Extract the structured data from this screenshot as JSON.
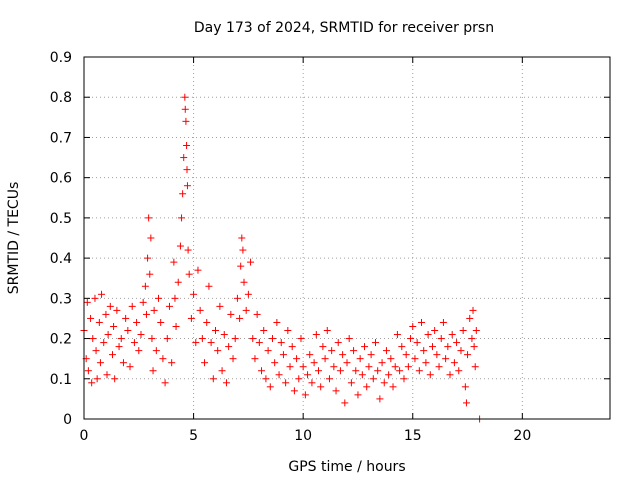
{
  "chart_data": {
    "type": "scatter",
    "title": "Day 173 of 2024, SRMTID for receiver prsn",
    "xlabel": "GPS time / hours",
    "ylabel": "SRMTID / TECUs",
    "xlim": [
      0,
      24
    ],
    "ylim": [
      0,
      0.9
    ],
    "xticks": [
      0,
      5,
      10,
      15,
      20
    ],
    "yticks": [
      0,
      0.1,
      0.2,
      0.3,
      0.4,
      0.5,
      0.6,
      0.7,
      0.8,
      0.9
    ],
    "ytick_labels": [
      "0",
      "0.1",
      "0.2",
      "0.3",
      "0.4",
      "0.5",
      "0.6",
      "0.7",
      "0.8",
      "0.9"
    ],
    "grid": true,
    "marker": "+",
    "color": "#ff0000",
    "series": [
      {
        "name": "SRMTID",
        "points": [
          [
            0.0,
            0.22
          ],
          [
            0.1,
            0.15
          ],
          [
            0.15,
            0.29
          ],
          [
            0.2,
            0.12
          ],
          [
            0.3,
            0.25
          ],
          [
            0.35,
            0.09
          ],
          [
            0.4,
            0.2
          ],
          [
            0.5,
            0.3
          ],
          [
            0.55,
            0.17
          ],
          [
            0.6,
            0.1
          ],
          [
            0.7,
            0.24
          ],
          [
            0.75,
            0.14
          ],
          [
            0.8,
            0.31
          ],
          [
            0.9,
            0.19
          ],
          [
            1.0,
            0.26
          ],
          [
            1.05,
            0.11
          ],
          [
            1.1,
            0.21
          ],
          [
            1.2,
            0.28
          ],
          [
            1.3,
            0.16
          ],
          [
            1.35,
            0.23
          ],
          [
            1.4,
            0.1
          ],
          [
            1.5,
            0.27
          ],
          [
            1.6,
            0.18
          ],
          [
            1.7,
            0.2
          ],
          [
            1.8,
            0.14
          ],
          [
            1.9,
            0.25
          ],
          [
            2.0,
            0.22
          ],
          [
            2.1,
            0.13
          ],
          [
            2.2,
            0.28
          ],
          [
            2.3,
            0.19
          ],
          [
            2.4,
            0.24
          ],
          [
            2.5,
            0.17
          ],
          [
            2.6,
            0.21
          ],
          [
            2.7,
            0.29
          ],
          [
            2.8,
            0.33
          ],
          [
            2.85,
            0.26
          ],
          [
            2.9,
            0.4
          ],
          [
            2.95,
            0.5
          ],
          [
            3.0,
            0.36
          ],
          [
            3.05,
            0.45
          ],
          [
            3.1,
            0.2
          ],
          [
            3.15,
            0.12
          ],
          [
            3.2,
            0.27
          ],
          [
            3.3,
            0.17
          ],
          [
            3.4,
            0.3
          ],
          [
            3.5,
            0.24
          ],
          [
            3.6,
            0.15
          ],
          [
            3.7,
            0.09
          ],
          [
            3.8,
            0.2
          ],
          [
            3.9,
            0.28
          ],
          [
            4.0,
            0.14
          ],
          [
            4.1,
            0.39
          ],
          [
            4.15,
            0.3
          ],
          [
            4.2,
            0.23
          ],
          [
            4.3,
            0.34
          ],
          [
            4.4,
            0.43
          ],
          [
            4.45,
            0.5
          ],
          [
            4.5,
            0.56
          ],
          [
            4.55,
            0.65
          ],
          [
            4.6,
            0.8
          ],
          [
            4.62,
            0.77
          ],
          [
            4.65,
            0.74
          ],
          [
            4.68,
            0.68
          ],
          [
            4.7,
            0.62
          ],
          [
            4.72,
            0.58
          ],
          [
            4.75,
            0.42
          ],
          [
            4.8,
            0.36
          ],
          [
            4.9,
            0.25
          ],
          [
            5.0,
            0.31
          ],
          [
            5.1,
            0.19
          ],
          [
            5.2,
            0.37
          ],
          [
            5.3,
            0.27
          ],
          [
            5.4,
            0.2
          ],
          [
            5.5,
            0.14
          ],
          [
            5.6,
            0.24
          ],
          [
            5.7,
            0.33
          ],
          [
            5.8,
            0.19
          ],
          [
            5.9,
            0.1
          ],
          [
            6.0,
            0.22
          ],
          [
            6.1,
            0.17
          ],
          [
            6.2,
            0.28
          ],
          [
            6.3,
            0.12
          ],
          [
            6.4,
            0.21
          ],
          [
            6.5,
            0.09
          ],
          [
            6.6,
            0.18
          ],
          [
            6.7,
            0.26
          ],
          [
            6.8,
            0.15
          ],
          [
            6.9,
            0.2
          ],
          [
            7.0,
            0.3
          ],
          [
            7.1,
            0.25
          ],
          [
            7.15,
            0.38
          ],
          [
            7.2,
            0.45
          ],
          [
            7.25,
            0.42
          ],
          [
            7.3,
            0.34
          ],
          [
            7.4,
            0.27
          ],
          [
            7.5,
            0.31
          ],
          [
            7.6,
            0.39
          ],
          [
            7.7,
            0.2
          ],
          [
            7.8,
            0.15
          ],
          [
            7.9,
            0.26
          ],
          [
            8.0,
            0.19
          ],
          [
            8.1,
            0.12
          ],
          [
            8.2,
            0.22
          ],
          [
            8.3,
            0.1
          ],
          [
            8.4,
            0.17
          ],
          [
            8.5,
            0.08
          ],
          [
            8.6,
            0.2
          ],
          [
            8.7,
            0.14
          ],
          [
            8.8,
            0.24
          ],
          [
            8.9,
            0.11
          ],
          [
            9.0,
            0.19
          ],
          [
            9.1,
            0.16
          ],
          [
            9.2,
            0.09
          ],
          [
            9.3,
            0.22
          ],
          [
            9.4,
            0.13
          ],
          [
            9.5,
            0.18
          ],
          [
            9.6,
            0.07
          ],
          [
            9.7,
            0.15
          ],
          [
            9.8,
            0.1
          ],
          [
            9.9,
            0.2
          ],
          [
            10.0,
            0.13
          ],
          [
            10.1,
            0.06
          ],
          [
            10.2,
            0.11
          ],
          [
            10.3,
            0.16
          ],
          [
            10.4,
            0.09
          ],
          [
            10.5,
            0.14
          ],
          [
            10.6,
            0.21
          ],
          [
            10.7,
            0.12
          ],
          [
            10.8,
            0.08
          ],
          [
            10.9,
            0.18
          ],
          [
            11.0,
            0.15
          ],
          [
            11.1,
            0.22
          ],
          [
            11.2,
            0.1
          ],
          [
            11.3,
            0.17
          ],
          [
            11.4,
            0.13
          ],
          [
            11.5,
            0.07
          ],
          [
            11.6,
            0.19
          ],
          [
            11.7,
            0.12
          ],
          [
            11.8,
            0.16
          ],
          [
            11.9,
            0.04
          ],
          [
            12.0,
            0.14
          ],
          [
            12.1,
            0.2
          ],
          [
            12.2,
            0.09
          ],
          [
            12.3,
            0.17
          ],
          [
            12.4,
            0.12
          ],
          [
            12.5,
            0.06
          ],
          [
            12.6,
            0.15
          ],
          [
            12.7,
            0.11
          ],
          [
            12.8,
            0.18
          ],
          [
            12.9,
            0.08
          ],
          [
            13.0,
            0.13
          ],
          [
            13.1,
            0.16
          ],
          [
            13.2,
            0.1
          ],
          [
            13.3,
            0.19
          ],
          [
            13.4,
            0.12
          ],
          [
            13.5,
            0.05
          ],
          [
            13.6,
            0.14
          ],
          [
            13.7,
            0.09
          ],
          [
            13.8,
            0.17
          ],
          [
            13.9,
            0.11
          ],
          [
            14.0,
            0.15
          ],
          [
            14.1,
            0.08
          ],
          [
            14.2,
            0.13
          ],
          [
            14.3,
            0.21
          ],
          [
            14.4,
            0.12
          ],
          [
            14.5,
            0.18
          ],
          [
            14.6,
            0.1
          ],
          [
            14.7,
            0.16
          ],
          [
            14.8,
            0.13
          ],
          [
            14.9,
            0.2
          ],
          [
            15.0,
            0.23
          ],
          [
            15.1,
            0.15
          ],
          [
            15.2,
            0.19
          ],
          [
            15.3,
            0.12
          ],
          [
            15.4,
            0.24
          ],
          [
            15.5,
            0.17
          ],
          [
            15.6,
            0.14
          ],
          [
            15.7,
            0.21
          ],
          [
            15.8,
            0.11
          ],
          [
            15.9,
            0.18
          ],
          [
            16.0,
            0.22
          ],
          [
            16.1,
            0.16
          ],
          [
            16.2,
            0.13
          ],
          [
            16.3,
            0.2
          ],
          [
            16.4,
            0.24
          ],
          [
            16.5,
            0.15
          ],
          [
            16.6,
            0.18
          ],
          [
            16.7,
            0.11
          ],
          [
            16.8,
            0.21
          ],
          [
            16.9,
            0.14
          ],
          [
            17.0,
            0.19
          ],
          [
            17.1,
            0.12
          ],
          [
            17.2,
            0.17
          ],
          [
            17.3,
            0.22
          ],
          [
            17.4,
            0.08
          ],
          [
            17.45,
            0.04
          ],
          [
            17.5,
            0.16
          ],
          [
            17.6,
            0.25
          ],
          [
            17.7,
            0.2
          ],
          [
            17.75,
            0.27
          ],
          [
            17.8,
            0.18
          ],
          [
            17.85,
            0.13
          ],
          [
            17.9,
            0.22
          ],
          [
            18.05,
            0.0
          ]
        ]
      }
    ]
  }
}
